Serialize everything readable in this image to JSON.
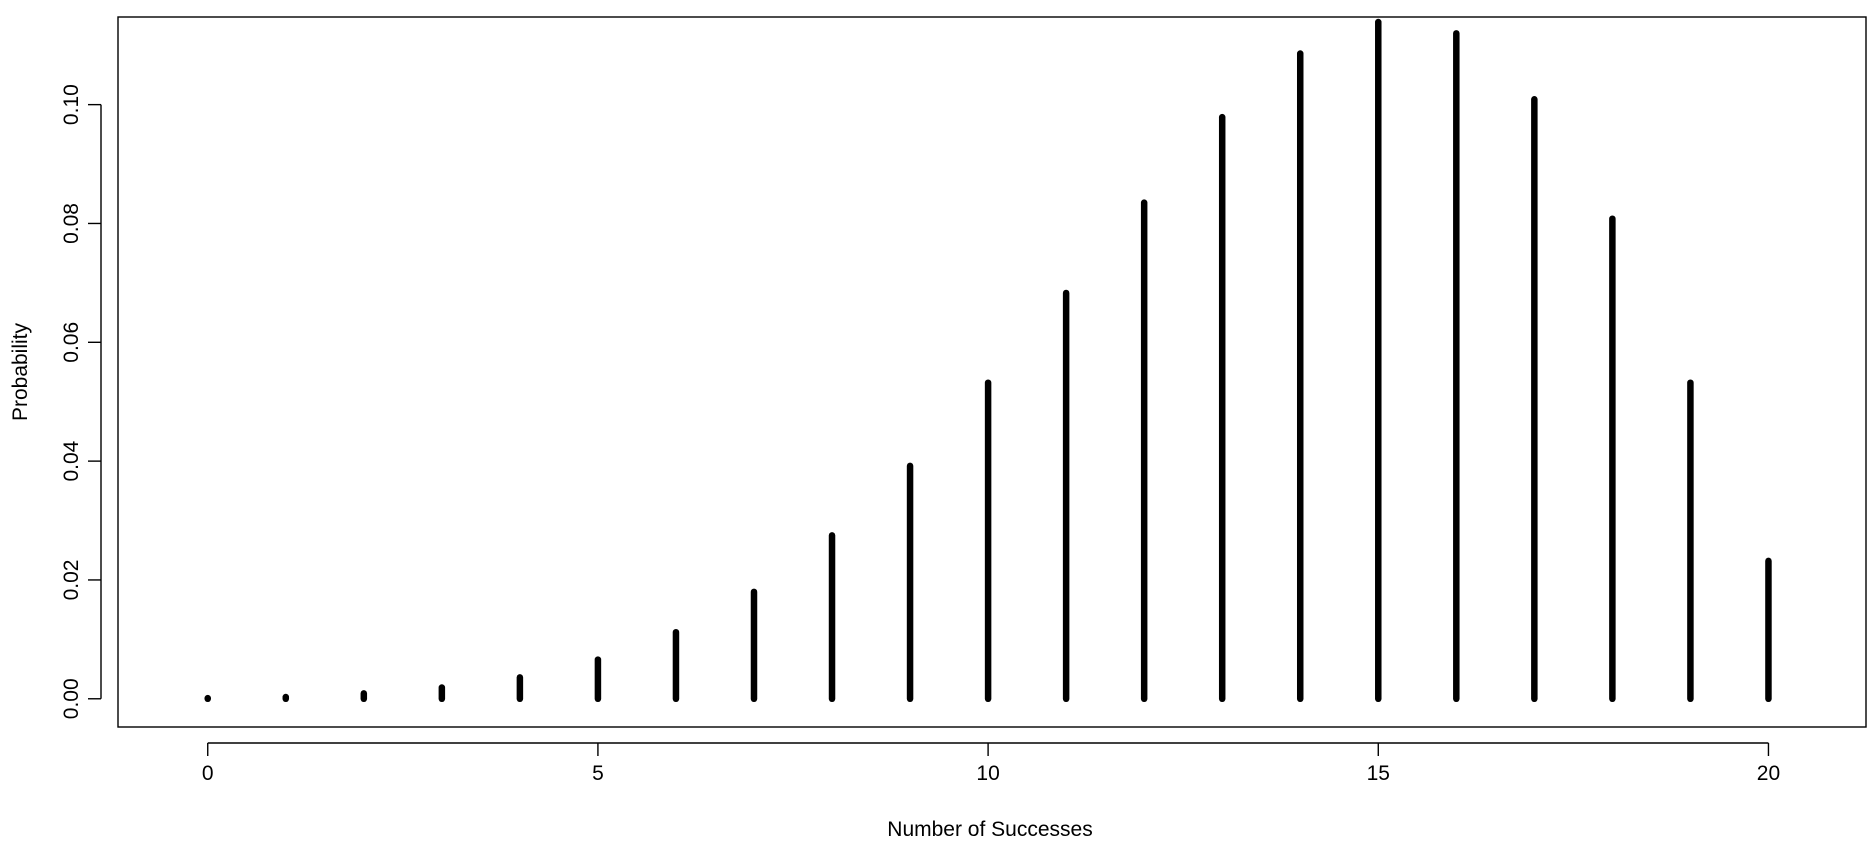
{
  "chart_data": {
    "type": "bar",
    "title": "",
    "xlabel": "Number of Successes",
    "ylabel": "Probability",
    "x": [
      0,
      1,
      2,
      3,
      4,
      5,
      6,
      7,
      8,
      9,
      10,
      11,
      12,
      13,
      14,
      15,
      16,
      17,
      18,
      19,
      20
    ],
    "values": [
      0.0001,
      0.0003,
      0.0009,
      0.0019,
      0.0036,
      0.0066,
      0.0112,
      0.018,
      0.0275,
      0.0392,
      0.0532,
      0.0683,
      0.0835,
      0.0979,
      0.1086,
      0.1139,
      0.112,
      0.1009,
      0.0808,
      0.0532,
      0.0232
    ],
    "xlim": [
      -1.15,
      21.25
    ],
    "ylim": [
      -0.00475,
      0.11475
    ],
    "x_ticks": [
      "0",
      "5",
      "10",
      "15",
      "20"
    ],
    "y_ticks": [
      "0.00",
      "0.02",
      "0.04",
      "0.06",
      "0.08",
      "0.10"
    ],
    "grid": false,
    "legend": "none",
    "colors": {
      "bars": "#000000",
      "axes": "#000000",
      "background": "#ffffff"
    }
  }
}
